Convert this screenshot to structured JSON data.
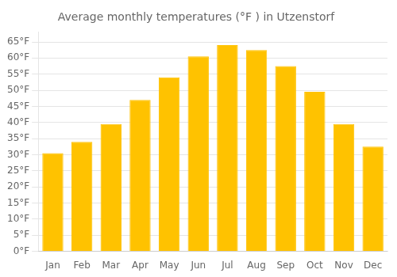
{
  "chart_data": {
    "type": "bar",
    "title": "Average monthly temperatures (°F ) in Utzenstorf",
    "categories": [
      "Jan",
      "Feb",
      "Mar",
      "Apr",
      "May",
      "Jun",
      "Jul",
      "Aug",
      "Sep",
      "Oct",
      "Nov",
      "Dec"
    ],
    "values": [
      30.5,
      34.0,
      39.5,
      47.0,
      54.0,
      60.5,
      64.0,
      62.5,
      57.5,
      49.5,
      39.5,
      32.5
    ],
    "color": "#FFC200",
    "ylim": [
      0,
      68
    ],
    "yticks": [
      {
        "value": 0,
        "label": "0°F"
      },
      {
        "value": 5,
        "label": "5°F"
      },
      {
        "value": 10,
        "label": "10°F"
      },
      {
        "value": 15,
        "label": "15°F"
      },
      {
        "value": 20,
        "label": "20°F"
      },
      {
        "value": 25,
        "label": "25°F"
      },
      {
        "value": 30,
        "label": "30°F"
      },
      {
        "value": 35,
        "label": "35°F"
      },
      {
        "value": 40,
        "label": "40°F"
      },
      {
        "value": 45,
        "label": "45°F"
      },
      {
        "value": 50,
        "label": "50°F"
      },
      {
        "value": 55,
        "label": "55°F"
      },
      {
        "value": 60,
        "label": "60°F"
      },
      {
        "value": 65,
        "label": "65°F"
      }
    ],
    "grid": true
  }
}
